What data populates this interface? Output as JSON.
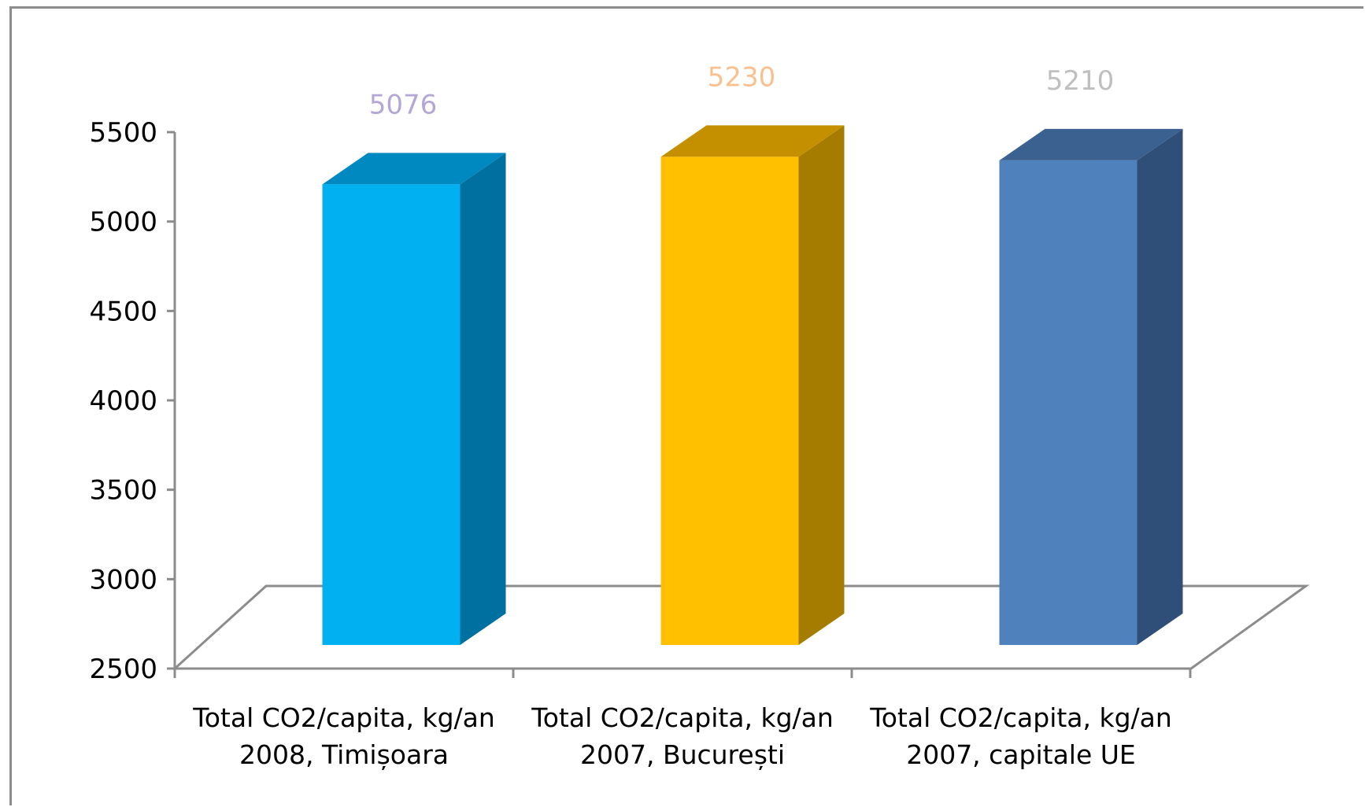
{
  "chart_data": {
    "type": "bar",
    "style": "3d-column",
    "categories": [
      [
        "Total CO2/capita, kg/an",
        "2008, Timișoara"
      ],
      [
        "Total CO2/capita, kg/an",
        "2007, București"
      ],
      [
        "Total CO2/capita, kg/an",
        "2007, capitale UE"
      ]
    ],
    "values": [
      5076,
      5230,
      5210
    ],
    "data_labels": [
      "5076",
      "5230",
      "5210"
    ],
    "bar_colors": [
      {
        "front": "#00b0f0",
        "side": "#0070a0",
        "top": "#0088c0",
        "label": "#b4a7d6"
      },
      {
        "front": "#ffc000",
        "side": "#a67c00",
        "top": "#c49000",
        "label": "#fac08f"
      },
      {
        "front": "#4f81bd",
        "side": "#2f4f78",
        "top": "#3a6190",
        "label": "#bfbfbf"
      }
    ],
    "y_ticks": [
      "2500",
      "3000",
      "3500",
      "4000",
      "4500",
      "5000",
      "5500"
    ],
    "ylim": [
      2500,
      5500
    ],
    "title": "",
    "xlabel": "",
    "ylabel": "",
    "grid": false,
    "legend": "none"
  }
}
